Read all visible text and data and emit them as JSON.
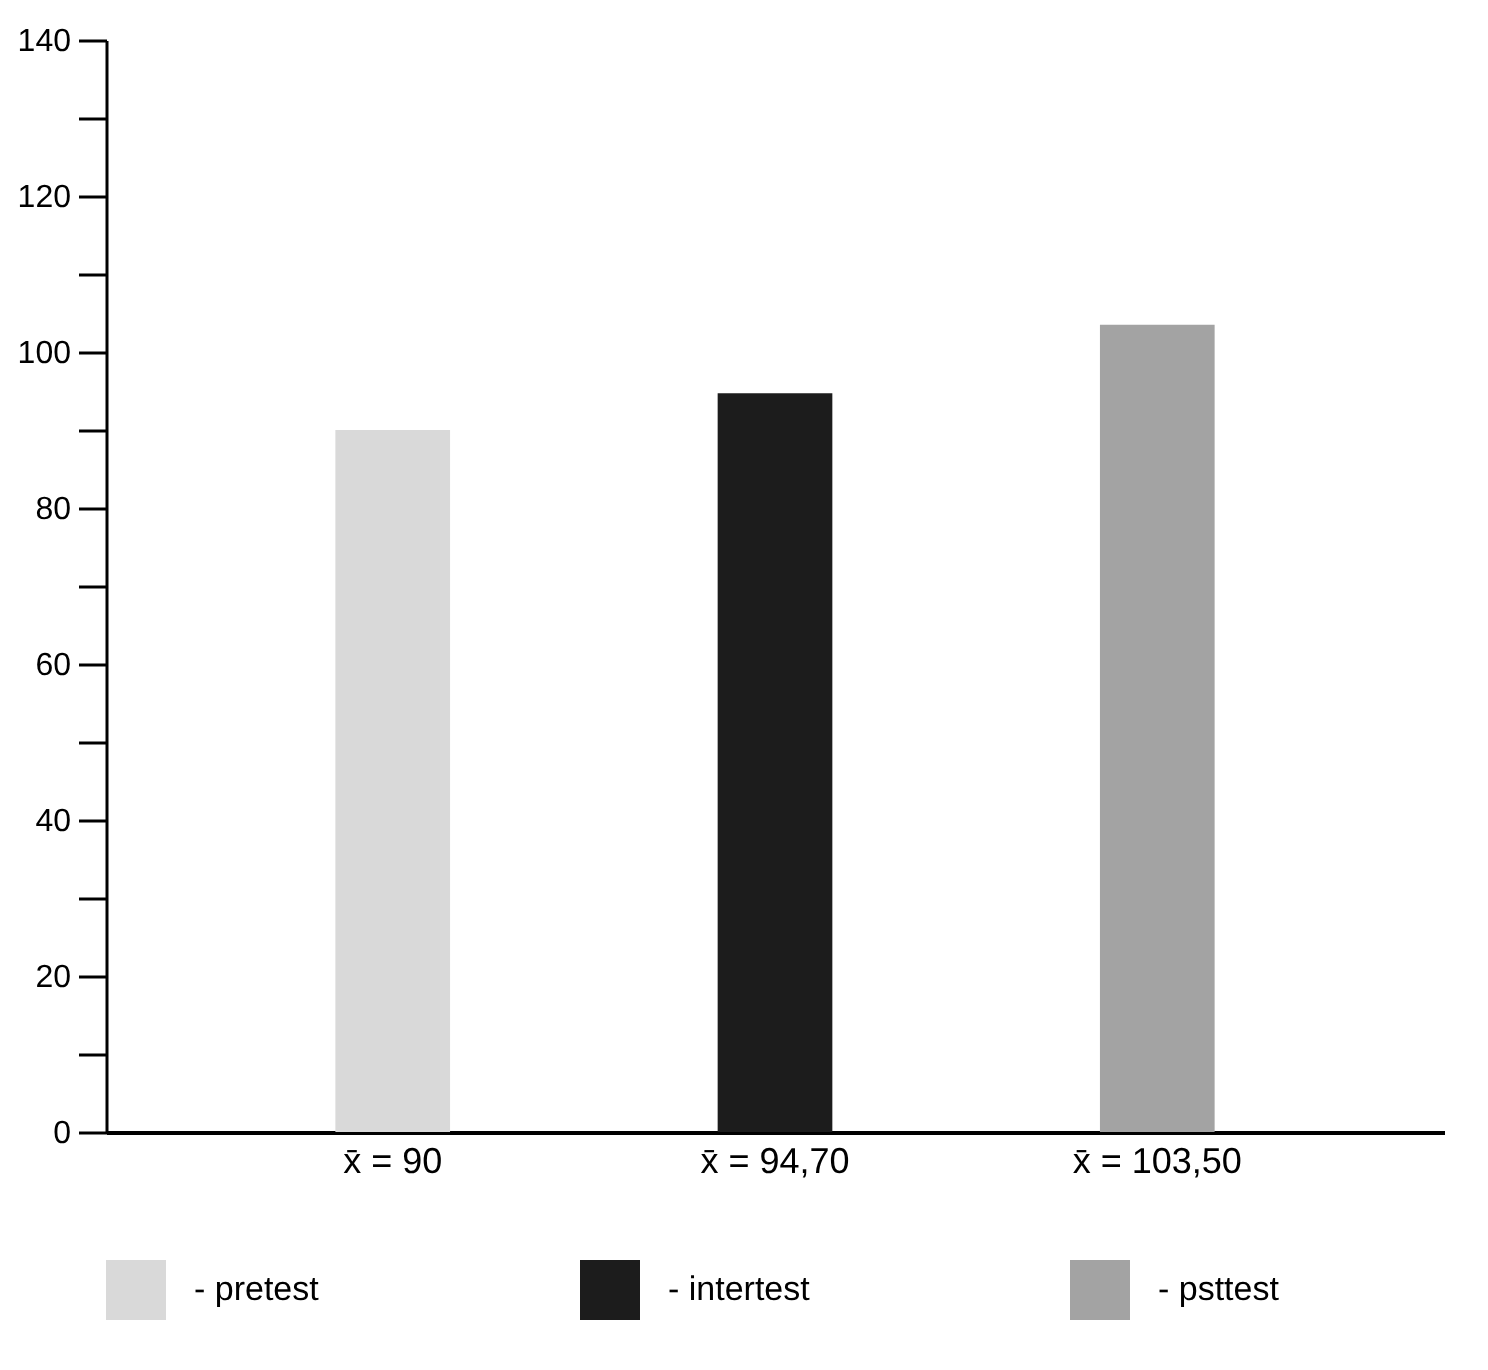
{
  "chart_data": {
    "type": "bar",
    "categories": [
      "x̄ = 90",
      "x̄ = 94,70",
      "x̄ = 103,50"
    ],
    "series": [
      {
        "name": "- pretest",
        "color": "#d9d9d9",
        "values": [
          90,
          null,
          null
        ]
      },
      {
        "name": "- intertest",
        "color": "#1c1c1c",
        "values": [
          null,
          94.7,
          null
        ]
      },
      {
        "name": "- psttest",
        "color": "#a3a3a3",
        "values": [
          null,
          null,
          103.5
        ]
      }
    ],
    "ylim": [
      0,
      140
    ],
    "yticks": [
      0,
      {
        "value": 10,
        "label": null
      },
      20,
      {
        "value": 30,
        "label": null
      },
      40,
      {
        "value": 50,
        "label": null
      },
      60,
      {
        "value": 70,
        "label": null
      },
      80,
      {
        "value": 90,
        "label": null
      },
      100,
      {
        "value": 110,
        "label": null
      },
      120,
      {
        "value": 130,
        "label": null
      },
      140
    ],
    "grid": false,
    "legend": "bottom"
  }
}
